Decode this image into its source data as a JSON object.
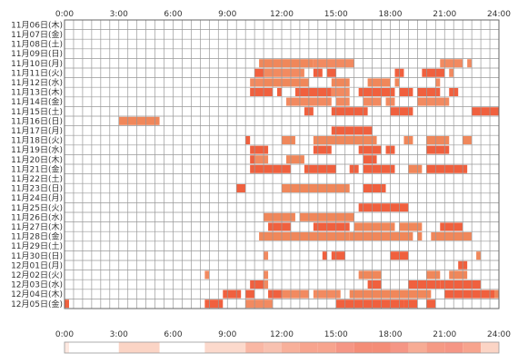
{
  "chart_data": {
    "type": "heatmap",
    "x_axis": {
      "range_hours": [
        0,
        24
      ],
      "tick_labels": [
        "0:00",
        "3:00",
        "6:00",
        "9:00",
        "12:00",
        "15:00",
        "18:00",
        "21:00",
        "24:00"
      ]
    },
    "rows": [
      "11月06日(木)",
      "11月07日(金)",
      "11月08日(土)",
      "11月09日(日)",
      "11月10日(月)",
      "11月11日(火)",
      "11月12日(水)",
      "11月13日(木)",
      "11月14日(金)",
      "11月15日(土)",
      "11月16日(日)",
      "11月17日(月)",
      "11月18日(火)",
      "11月19日(水)",
      "11月20日(木)",
      "11月21日(金)",
      "11月22日(土)",
      "11月23日(日)",
      "11月24日(月)",
      "11月25日(火)",
      "11月26日(水)",
      "11月27日(木)",
      "11月28日(金)",
      "11月29日(土)",
      "11月30日(日)",
      "12月01日(月)",
      "12月02日(火)",
      "12月03日(水)",
      "12月04日(木)",
      "12月05日(金)"
    ],
    "segments": [
      [],
      [],
      [],
      [],
      [
        [
          10.75,
          13.75,
          "#f0875a"
        ],
        [
          13.75,
          16.0,
          "#f28a60"
        ],
        [
          20.75,
          22.0,
          "#f28a60"
        ],
        [
          22.25,
          22.5,
          "#f28a60"
        ]
      ],
      [
        [
          10.5,
          11.0,
          "#f2603e"
        ],
        [
          11.0,
          13.25,
          "#f28a60"
        ],
        [
          13.75,
          14.25,
          "#f0603e"
        ],
        [
          14.5,
          15.0,
          "#f0603e"
        ],
        [
          18.25,
          18.75,
          "#f0603e"
        ],
        [
          19.75,
          21.0,
          "#f0603e"
        ],
        [
          21.25,
          21.5,
          "#f28a60"
        ]
      ],
      [
        [
          10.25,
          11.0,
          "#f28a60"
        ],
        [
          11.0,
          13.5,
          "#f0875a"
        ],
        [
          14.75,
          15.75,
          "#f0875a"
        ],
        [
          16.75,
          18.0,
          "#f0875a"
        ],
        [
          18.25,
          18.5,
          "#f0875a"
        ],
        [
          20.5,
          20.75,
          "#f28a60"
        ]
      ],
      [
        [
          10.25,
          11.5,
          "#f0603e"
        ],
        [
          11.75,
          12.0,
          "#f0603e"
        ],
        [
          12.75,
          14.75,
          "#f0603e"
        ],
        [
          14.75,
          15.75,
          "#f28a60"
        ],
        [
          16.25,
          18.25,
          "#f0603e"
        ],
        [
          18.5,
          19.25,
          "#f0603e"
        ],
        [
          19.5,
          20.75,
          "#f0603e"
        ],
        [
          21.25,
          21.75,
          "#f0603e"
        ]
      ],
      [
        [
          12.25,
          14.75,
          "#f28a60"
        ],
        [
          15.0,
          15.75,
          "#f28a60"
        ],
        [
          16.5,
          17.5,
          "#f28a60"
        ],
        [
          17.75,
          18.25,
          "#f28a60"
        ],
        [
          19.5,
          21.0,
          "#f28a60"
        ],
        [
          21.0,
          21.25,
          "#f28a60"
        ]
      ],
      [
        [
          13.25,
          13.75,
          "#f0603e"
        ],
        [
          14.75,
          16.75,
          "#f0603e"
        ],
        [
          18.0,
          19.25,
          "#f0603e"
        ],
        [
          22.5,
          24.0,
          "#f0603e"
        ]
      ],
      [
        [
          3.0,
          5.25,
          "#f0875a"
        ]
      ],
      [
        [
          14.75,
          17.0,
          "#f0603e"
        ]
      ],
      [
        [
          10.0,
          10.25,
          "#f0603e"
        ],
        [
          12.0,
          12.75,
          "#f0875a"
        ],
        [
          13.75,
          17.25,
          "#f0875a"
        ],
        [
          18.75,
          19.25,
          "#f0875a"
        ],
        [
          20.0,
          21.25,
          "#f0875a"
        ],
        [
          22.0,
          22.5,
          "#f0875a"
        ]
      ],
      [
        [
          10.25,
          11.25,
          "#f0603e"
        ],
        [
          13.75,
          14.75,
          "#f0603e"
        ],
        [
          16.25,
          17.5,
          "#f0603e"
        ],
        [
          17.75,
          18.25,
          "#f0603e"
        ],
        [
          20.0,
          21.25,
          "#f0603e"
        ]
      ],
      [
        [
          10.25,
          10.5,
          "#f0603e"
        ],
        [
          10.5,
          11.25,
          "#f28a60"
        ],
        [
          12.25,
          13.25,
          "#f0875a"
        ],
        [
          16.5,
          17.25,
          "#f0603e"
        ]
      ],
      [
        [
          10.25,
          12.5,
          "#f0603e"
        ],
        [
          13.25,
          15.0,
          "#f0603e"
        ],
        [
          15.75,
          16.25,
          "#f0603e"
        ],
        [
          16.5,
          18.25,
          "#f0603e"
        ],
        [
          19.0,
          19.75,
          "#f0875a"
        ],
        [
          20.0,
          22.25,
          "#f0603e"
        ]
      ],
      [],
      [
        [
          9.5,
          10.0,
          "#f0603e"
        ],
        [
          12.0,
          15.75,
          "#f0875a"
        ],
        [
          16.5,
          17.75,
          "#f0603e"
        ]
      ],
      [],
      [
        [
          16.25,
          19.0,
          "#f0603e"
        ]
      ],
      [
        [
          11.0,
          12.75,
          "#f0875a"
        ],
        [
          13.0,
          16.0,
          "#f0875a"
        ]
      ],
      [
        [
          11.25,
          12.5,
          "#f0603e"
        ],
        [
          13.75,
          15.75,
          "#f0603e"
        ],
        [
          16.0,
          18.0,
          "#f0875a"
        ],
        [
          18.0,
          18.25,
          "#f0875a"
        ],
        [
          18.5,
          19.75,
          "#f0875a"
        ],
        [
          20.75,
          22.0,
          "#f0603e"
        ]
      ],
      [
        [
          10.75,
          12.5,
          "#f0875a"
        ],
        [
          12.5,
          15.75,
          "#f0875a"
        ],
        [
          15.75,
          19.25,
          "#f0875a"
        ],
        [
          19.5,
          19.75,
          "#f0875a"
        ],
        [
          20.25,
          22.5,
          "#f0875a"
        ]
      ],
      [],
      [
        [
          11.0,
          11.25,
          "#f28a60"
        ],
        [
          14.25,
          14.5,
          "#f0603e"
        ],
        [
          14.75,
          15.5,
          "#f0603e"
        ],
        [
          18.0,
          19.0,
          "#f0603e"
        ],
        [
          22.75,
          23.0,
          "#f0875a"
        ]
      ],
      [
        [
          21.75,
          22.25,
          "#f0603e"
        ]
      ],
      [
        [
          7.75,
          8.0,
          "#f28a60"
        ],
        [
          11.0,
          11.25,
          "#f28a60"
        ],
        [
          16.25,
          17.5,
          "#f0875a"
        ],
        [
          20.0,
          20.75,
          "#f0875a"
        ],
        [
          21.25,
          22.25,
          "#f0875a"
        ]
      ],
      [
        [
          10.25,
          11.0,
          "#f0603e"
        ],
        [
          11.0,
          11.25,
          "#f28a60"
        ],
        [
          16.75,
          17.5,
          "#f0603e"
        ],
        [
          19.0,
          20.75,
          "#f0603e"
        ],
        [
          20.75,
          23.0,
          "#f0603e"
        ]
      ],
      [
        [
          8.75,
          9.75,
          "#f0603e"
        ],
        [
          10.0,
          10.5,
          "#f0603e"
        ],
        [
          11.25,
          12.0,
          "#f0603e"
        ],
        [
          12.0,
          13.5,
          "#f28a60"
        ],
        [
          13.75,
          15.25,
          "#f28a60"
        ],
        [
          15.75,
          20.25,
          "#f0875a"
        ],
        [
          21.0,
          23.75,
          "#f0603e"
        ],
        [
          23.75,
          24.0,
          "#f0875a"
        ]
      ],
      [
        [
          0.0,
          0.25,
          "#f0603e"
        ],
        [
          7.75,
          8.75,
          "#f0603e"
        ],
        [
          10.0,
          11.5,
          "#f28a60"
        ],
        [
          15.0,
          17.0,
          "#f0603e"
        ],
        [
          17.0,
          18.75,
          "#f0603e"
        ],
        [
          18.75,
          19.5,
          "#f0603e"
        ],
        [
          20.0,
          20.5,
          "#f0603e"
        ]
      ]
    ],
    "density_strip": [
      [
        0,
        0.25,
        "#fde8e0"
      ],
      [
        3,
        5.25,
        "#fbd4c5"
      ],
      [
        7.75,
        10,
        "#fcd9cc"
      ],
      [
        10,
        11,
        "#f9b7a4"
      ],
      [
        11,
        12,
        "#f8c1b0"
      ],
      [
        12,
        13,
        "#f8b09a"
      ],
      [
        13,
        14,
        "#f7a48e"
      ],
      [
        14,
        15,
        "#f7a48e"
      ],
      [
        15,
        16,
        "#f59685"
      ],
      [
        16,
        17,
        "#f48d77"
      ],
      [
        17,
        18,
        "#f48d77"
      ],
      [
        18,
        19,
        "#f59685"
      ],
      [
        19,
        20,
        "#f7ac95"
      ],
      [
        20,
        21,
        "#f59a85"
      ],
      [
        21,
        22,
        "#f59685"
      ],
      [
        22,
        23,
        "#f7a48e"
      ],
      [
        23,
        24,
        "#fbd4c5"
      ]
    ],
    "colors": {
      "grid": "#999999",
      "frame": "#666666"
    }
  }
}
